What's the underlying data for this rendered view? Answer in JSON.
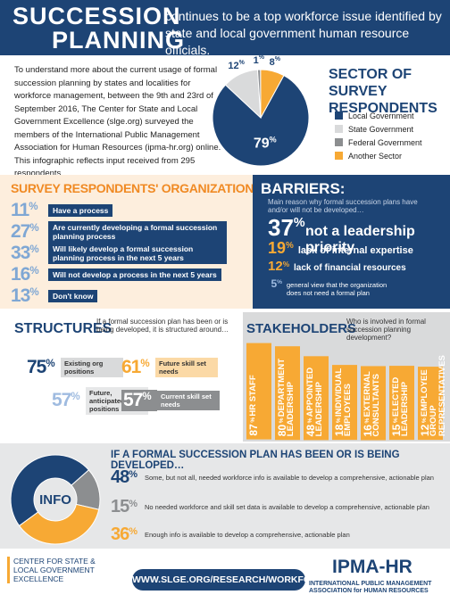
{
  "percent_sign": "%",
  "header": {
    "title_line1": "SUCCESSION",
    "title_line2": "PLANNING",
    "subtitle": "continues to be a top workforce issue identified by state and local government human resource officials."
  },
  "intro": "To understand more about the current usage of formal succession planning by states and localities for workforce management, between the 9th and 23rd of September 2016, The Center for State and Local Government Excellence (slge.org) surveyed the members of the International Public Management Association for Human Resources (ipma-hr.org) online. This infographic reflects input received from 295 respondents.",
  "sector": {
    "title": "SECTOR OF SURVEY RESPONDENTS",
    "slices": [
      {
        "label": "Local Government",
        "value": 79,
        "color": "#1d4475"
      },
      {
        "label": "State Government",
        "value": 12,
        "color": "#d9dadb"
      },
      {
        "label": "Federal Government",
        "value": 1,
        "color": "#8c8e90"
      },
      {
        "label": "Another Sector",
        "value": 8,
        "color": "#f7a934"
      }
    ]
  },
  "organizations": {
    "title": "SURVEY RESPONDENTS' ORGANIZATIONS...",
    "items": [
      {
        "value": 11,
        "text": "Have a process"
      },
      {
        "value": 27,
        "text": "Are currently developing a formal succession planning process"
      },
      {
        "value": 33,
        "text": "Will likely develop a formal succession planning process in the next 5 years"
      },
      {
        "value": 16,
        "text": "Will not develop a process in the next 5 years"
      },
      {
        "value": 13,
        "text": "Don't know"
      }
    ]
  },
  "barriers": {
    "title": "BARRIERS:",
    "subtitle": "Main reason why formal succession plans have and/or will not be developed…",
    "items": [
      {
        "value": 37,
        "text": "not a leadership priority",
        "color": "#ffffff"
      },
      {
        "value": 19,
        "text": "lack of internal expertise",
        "color": "#f7a934"
      },
      {
        "value": 12,
        "text": "lack of financial resources",
        "color": "#f7a934"
      },
      {
        "value": 5,
        "text": "general view that the organization does not need a formal plan",
        "color": "#9fbbe0"
      }
    ]
  },
  "structures": {
    "title": "STRUCTURES",
    "description": "If a formal succession plan has been or is being developed, it is structured around…",
    "items": [
      {
        "value": 75,
        "text": "Existing org positions",
        "color": "#1d4475",
        "box": "#d9dadb"
      },
      {
        "value": 61,
        "text": "Future skill set needs",
        "color": "#f7a934",
        "box": "#fbd9a6"
      },
      {
        "value": 57,
        "text": "Future, anticipated org positions",
        "color": "#9fbbe0",
        "box": "#e6e7e8"
      },
      {
        "value": 57,
        "text": "Current skill set needs",
        "color": "#ffffff",
        "box": "#8c8e90"
      }
    ]
  },
  "stakeholders": {
    "title": "STAKEHOLDERS",
    "description": "Who is involved in formal succession planning development?",
    "items": [
      {
        "value": 87,
        "label": "HR STAFF",
        "color": "#f7a934"
      },
      {
        "value": 80,
        "label": "DEPARTMENT LEADERSHIP",
        "color": "#f7a934"
      },
      {
        "value": 48,
        "label": "APPOINTED LEADERSHIP",
        "color": "#f7a934"
      },
      {
        "value": 18,
        "label": "INDIVIDUAL EMPLOYEES",
        "color": "#f7a934"
      },
      {
        "value": 16,
        "label": "EXTERNAL CONSULTANTS",
        "color": "#f7a934"
      },
      {
        "value": 15,
        "label": "ELECTED LEADERSHIP",
        "color": "#f7a934"
      },
      {
        "value": 12,
        "label": "EMPLOYEE GROUP REPRESENTATIVES",
        "color": "#f7a934"
      }
    ]
  },
  "info": {
    "title": "IF A FORMAL SUCCESSION PLAN HAS BEEN OR IS BEING DEVELOPED…",
    "center_label": "INFO",
    "items": [
      {
        "value": 48,
        "text": "Some, but not all, needed workforce info is available to develop a comprehensive, actionable plan",
        "color": "#1d4475"
      },
      {
        "value": 15,
        "text": "No needed workforce and skill set data is available to develop a comprehensive, actionable plan",
        "color": "#8c8e90"
      },
      {
        "value": 36,
        "text": "Enough info is available to develop a comprehensive, actionable plan",
        "color": "#f7a934"
      }
    ]
  },
  "footer": {
    "cslge": "CENTER FOR STATE & LOCAL GOVERNMENT EXCELLENCE",
    "url": "WWW.SLGE.ORG/RESEARCH/WORKFORCE",
    "ipma_logo": "IPMA-HR",
    "ipma_name": "INTERNATIONAL PUBLIC MANAGEMENT ASSOCIATION for HUMAN RESOURCES"
  }
}
